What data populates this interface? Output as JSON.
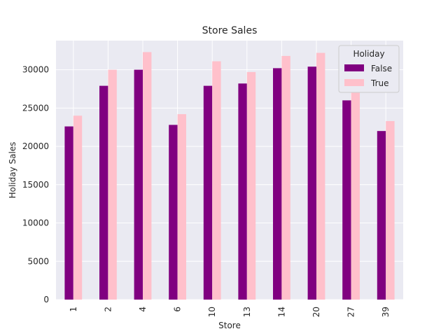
{
  "chart_data": {
    "type": "bar",
    "title": "Store Sales",
    "xlabel": "Store",
    "ylabel": "Holiday Sales",
    "categories": [
      "1",
      "2",
      "4",
      "6",
      "10",
      "13",
      "14",
      "20",
      "27",
      "39"
    ],
    "series": [
      {
        "name": "False",
        "color": "#800080",
        "values": [
          22600,
          27900,
          30000,
          22800,
          27900,
          28200,
          30200,
          30400,
          26000,
          22000
        ]
      },
      {
        "name": "True",
        "color": "#ffc0cb",
        "values": [
          24000,
          30000,
          32300,
          24200,
          31100,
          29700,
          31800,
          32200,
          28600,
          23300
        ]
      }
    ],
    "yticks": [
      0,
      5000,
      10000,
      15000,
      20000,
      25000,
      30000
    ],
    "ytick_labels": [
      "0",
      "5000",
      "10000",
      "15000",
      "20000",
      "25000",
      "30000"
    ],
    "ylim": [
      0,
      33800
    ],
    "grid": true,
    "legend": {
      "title": "Holiday",
      "placement": "top-right"
    },
    "background": "#eaeaf2"
  }
}
